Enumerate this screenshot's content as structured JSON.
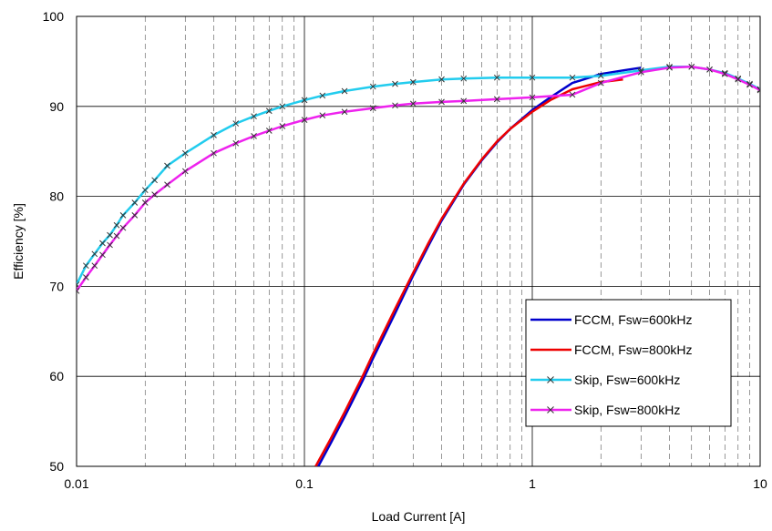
{
  "chart_data": {
    "type": "line",
    "title": "",
    "xlabel": "Load Current [A]",
    "ylabel": "Efficiency [%]",
    "x_scale": "log",
    "xlim": [
      0.01,
      10
    ],
    "ylim": [
      50,
      100
    ],
    "x_ticks": [
      0.01,
      0.1,
      1,
      10
    ],
    "x_tick_labels": [
      "0.01",
      "0.1",
      "1",
      "10"
    ],
    "y_ticks": [
      50,
      60,
      70,
      80,
      90,
      100
    ],
    "y_tick_labels": [
      "50",
      "60",
      "70",
      "80",
      "90",
      "100"
    ],
    "grid": true,
    "legend_position": "lower-right",
    "series": [
      {
        "name": "FCCM, Fsw=600kHz",
        "color": "#0000cc",
        "marker": "none",
        "x": [
          0.115,
          0.13,
          0.15,
          0.18,
          0.2,
          0.25,
          0.3,
          0.35,
          0.4,
          0.5,
          0.6,
          0.7,
          0.8,
          1.0,
          1.2,
          1.5,
          2.0,
          2.5,
          3.0
        ],
        "y": [
          50,
          52.5,
          55.5,
          59.5,
          62,
          67,
          71.2,
          74.5,
          77.3,
          81.3,
          84,
          86,
          87.5,
          89.6,
          91,
          92.6,
          93.6,
          94,
          94.3
        ]
      },
      {
        "name": "FCCM, Fsw=800kHz",
        "color": "#ee0000",
        "marker": "none",
        "x": [
          0.112,
          0.13,
          0.15,
          0.18,
          0.2,
          0.25,
          0.3,
          0.35,
          0.4,
          0.5,
          0.6,
          0.7,
          0.8,
          1.0,
          1.2,
          1.5,
          2.0,
          2.5
        ],
        "y": [
          50,
          53,
          56,
          60,
          62.5,
          67.5,
          71.5,
          74.8,
          77.5,
          81.4,
          84.1,
          86.1,
          87.5,
          89.4,
          90.7,
          91.9,
          92.7,
          93
        ]
      },
      {
        "name": "Skip,  Fsw=600kHz",
        "color": "#22ccee",
        "marker": "x",
        "x": [
          0.01,
          0.011,
          0.012,
          0.013,
          0.014,
          0.015,
          0.016,
          0.018,
          0.02,
          0.022,
          0.025,
          0.03,
          0.04,
          0.05,
          0.06,
          0.07,
          0.08,
          0.1,
          0.12,
          0.15,
          0.2,
          0.25,
          0.3,
          0.4,
          0.5,
          0.7,
          1.0,
          1.5,
          2.0,
          3.0,
          4.0,
          5.0,
          6.0,
          7.0,
          8.0,
          9.0,
          10.0
        ],
        "y": [
          70.2,
          72.3,
          73.6,
          74.8,
          75.7,
          76.8,
          77.9,
          79.3,
          80.7,
          81.8,
          83.4,
          84.8,
          86.8,
          88.1,
          88.9,
          89.5,
          90,
          90.7,
          91.2,
          91.7,
          92.2,
          92.5,
          92.7,
          93,
          93.1,
          93.2,
          93.2,
          93.2,
          93.4,
          94,
          94.4,
          94.4,
          94.1,
          93.7,
          93.1,
          92.5,
          91.9
        ]
      },
      {
        "name": "Skip,  Fsw=800kHz",
        "color": "#ee22ee",
        "marker": "x",
        "x": [
          0.01,
          0.011,
          0.012,
          0.013,
          0.014,
          0.015,
          0.016,
          0.018,
          0.02,
          0.022,
          0.025,
          0.03,
          0.04,
          0.05,
          0.06,
          0.07,
          0.08,
          0.1,
          0.12,
          0.15,
          0.2,
          0.25,
          0.3,
          0.4,
          0.5,
          0.7,
          1.0,
          1.5,
          2.0,
          3.0,
          4.0,
          5.0,
          6.0,
          7.0,
          8.0,
          9.0,
          10.0
        ],
        "y": [
          69.5,
          71,
          72.3,
          73.5,
          74.6,
          75.6,
          76.5,
          77.9,
          79.3,
          80.2,
          81.3,
          82.8,
          84.8,
          85.9,
          86.7,
          87.3,
          87.8,
          88.5,
          89,
          89.4,
          89.8,
          90.1,
          90.3,
          90.5,
          90.6,
          90.8,
          91,
          91.3,
          92.6,
          93.8,
          94.3,
          94.4,
          94.1,
          93.6,
          93,
          92.4,
          91.8
        ]
      }
    ]
  }
}
